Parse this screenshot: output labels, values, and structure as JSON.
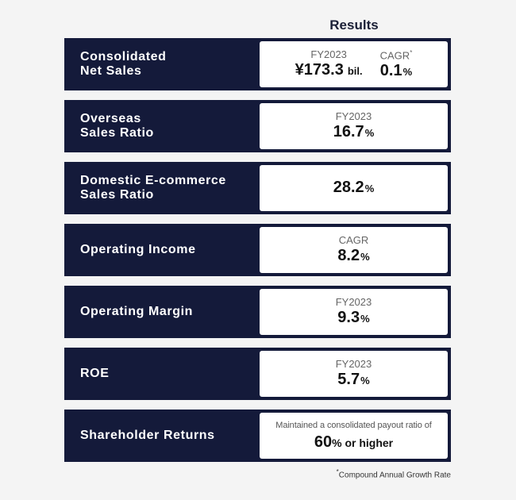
{
  "header": {
    "title": "Results"
  },
  "rows": [
    {
      "label_line1": "Consolidated",
      "label_line2": "Net Sales",
      "fy_period": "FY2023",
      "fy_value": "¥173.3",
      "fy_unit": "bil.",
      "cagr_period": "CAGR",
      "cagr_mark": "*",
      "cagr_value": "0.1",
      "cagr_unit": "%"
    },
    {
      "label_line1": "Overseas",
      "label_line2": "Sales Ratio",
      "period": "FY2023",
      "value": "16.7",
      "unit": "%"
    },
    {
      "label_line1": "Domestic E-commerce",
      "label_line2": "Sales Ratio",
      "value": "28.2",
      "unit": "%"
    },
    {
      "label_line1": "Operating Income",
      "period": "CAGR",
      "value": "8.2",
      "unit": "%"
    },
    {
      "label_line1": "Operating Margin",
      "period": "FY2023",
      "value": "9.3",
      "unit": "%"
    },
    {
      "label_line1": "ROE",
      "period": "FY2023",
      "value": "5.7",
      "unit": "%"
    },
    {
      "label_line1": "Shareholder Returns",
      "desc": "Maintained a consolidated payout ratio of",
      "value": "60",
      "unit": "%",
      "suffix": " or higher"
    }
  ],
  "footnote": {
    "mark": "*",
    "text": "Compound Annual Growth Rate"
  },
  "colors": {
    "row_bg": "#141a3a",
    "page_bg": "#f4f4f4",
    "box_bg": "#ffffff"
  }
}
